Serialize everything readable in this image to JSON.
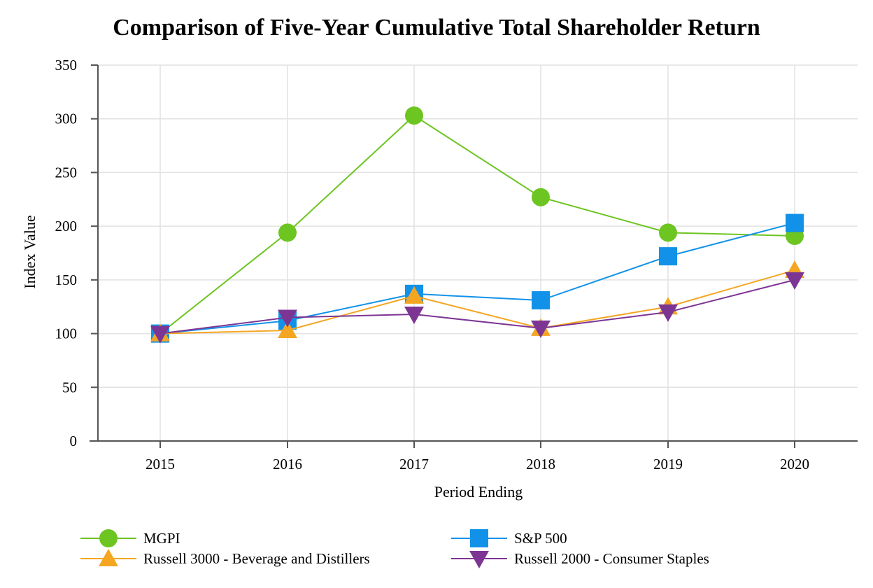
{
  "chart_data": {
    "type": "line",
    "title": "Comparison of Five-Year Cumulative Total Shareholder Return",
    "xlabel": "Period Ending",
    "ylabel": "Index Value",
    "categories": [
      "2015",
      "2016",
      "2017",
      "2018",
      "2019",
      "2020"
    ],
    "ylim": [
      0,
      350
    ],
    "yticks": [
      0,
      50,
      100,
      150,
      200,
      250,
      300,
      350
    ],
    "grid": true,
    "legend_position": "bottom",
    "series": [
      {
        "name": "MGPI",
        "marker": "circle",
        "color": "#6cc520",
        "values": [
          100,
          194,
          303,
          227,
          194,
          191
        ]
      },
      {
        "name": "S&P 500",
        "marker": "square",
        "color": "#1192e8",
        "values": [
          100,
          112,
          137,
          131,
          172,
          203
        ]
      },
      {
        "name": "Russell 3000 - Beverage and Distillers",
        "marker": "triangle-up",
        "color": "#f4a623",
        "values": [
          100,
          103,
          135,
          105,
          125,
          159
        ]
      },
      {
        "name": "Russell 2000 - Consumer Staples",
        "marker": "triangle-down",
        "color": "#7d3594",
        "values": [
          100,
          115,
          118,
          105,
          120,
          150
        ]
      }
    ]
  }
}
